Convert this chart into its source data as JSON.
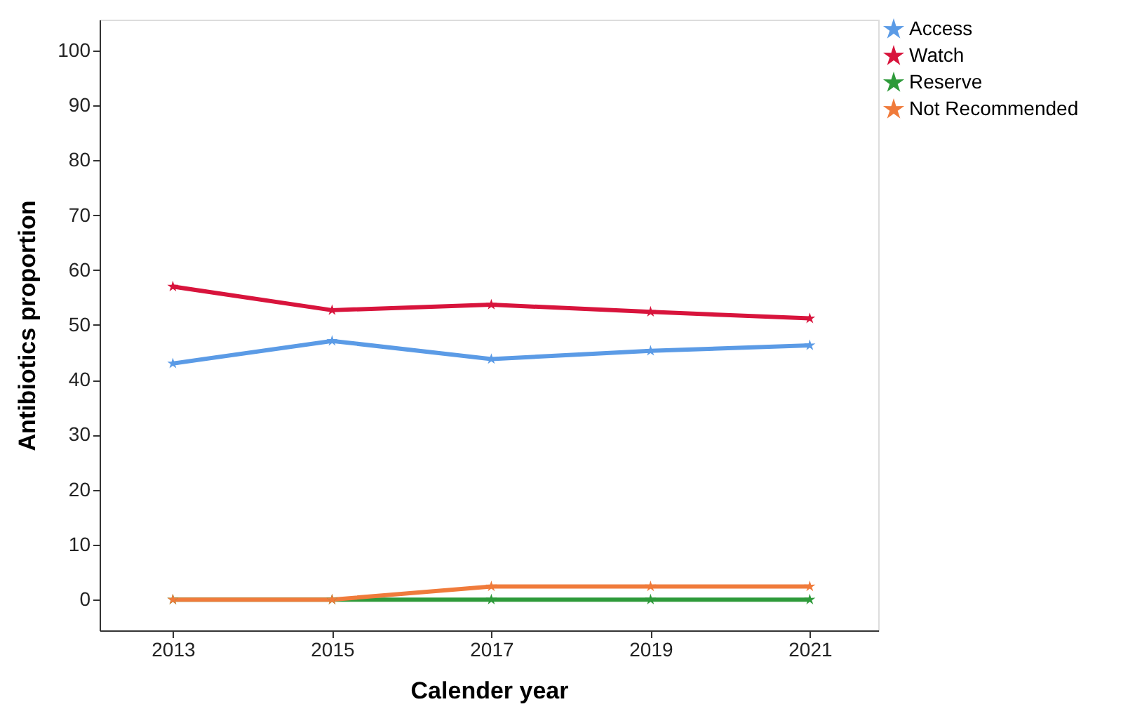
{
  "chart_data": {
    "type": "line",
    "xlabel": "Calender year",
    "ylabel": "Antibiotics proportion",
    "categories": [
      "2013",
      "2015",
      "2017",
      "2019",
      "2021"
    ],
    "series": [
      {
        "name": "Access",
        "color": "#5b9be6",
        "values": [
          43.0,
          47.1,
          43.8,
          45.3,
          46.3
        ]
      },
      {
        "name": "Watch",
        "color": "#d8143c",
        "values": [
          57.0,
          52.7,
          53.7,
          52.4,
          51.2
        ]
      },
      {
        "name": "Reserve",
        "color": "#2e9a3a",
        "values": [
          0,
          0,
          0,
          0,
          0
        ]
      },
      {
        "name": "Not Recommended",
        "color": "#f07b3b",
        "values": [
          0,
          0,
          2.4,
          2.4,
          2.4
        ]
      }
    ],
    "ylim": [
      -5.6,
      105.6
    ],
    "yticks": [
      0,
      10,
      20,
      30,
      40,
      50,
      60,
      70,
      80,
      90,
      100
    ],
    "grid": false,
    "legend": "top right",
    "marker": "star",
    "line_style": "solid"
  }
}
